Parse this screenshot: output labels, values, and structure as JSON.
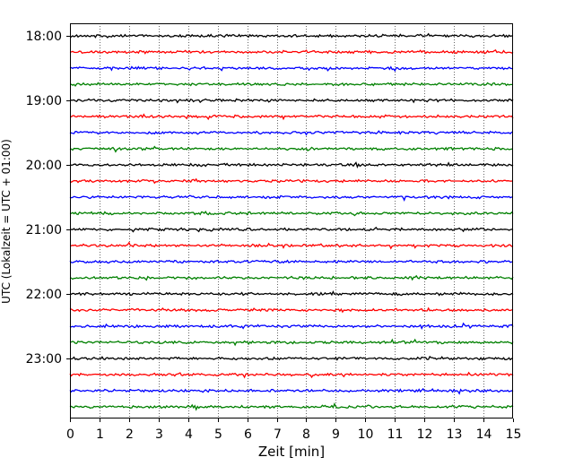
{
  "chart_data": {
    "type": "line",
    "title": "",
    "xlabel": "Zeit  [min]",
    "ylabel": "UTC (Lokalzeit = UTC + 01:00)",
    "xlim": [
      0,
      15
    ],
    "x_ticks": [
      0,
      1,
      2,
      3,
      4,
      5,
      6,
      7,
      8,
      9,
      10,
      11,
      12,
      13,
      14,
      15
    ],
    "y_tick_labels": [
      "18:00",
      "19:00",
      "20:00",
      "21:00",
      "22:00",
      "23:00"
    ],
    "grid": "vertical dotted lines at each minute",
    "legend": "none",
    "trace_interval_min": 15,
    "trace_colors": [
      "#000000",
      "#ff0000",
      "#0000ff",
      "#008000"
    ],
    "series": [
      {
        "start": "18:00",
        "color": "#000000",
        "amplitude": 0.3
      },
      {
        "start": "18:15",
        "color": "#ff0000",
        "amplitude": 0.3
      },
      {
        "start": "18:30",
        "color": "#0000ff",
        "amplitude": 0.3
      },
      {
        "start": "18:45",
        "color": "#008000",
        "amplitude": 0.3
      },
      {
        "start": "19:00",
        "color": "#000000",
        "amplitude": 0.3
      },
      {
        "start": "19:15",
        "color": "#ff0000",
        "amplitude": 0.3
      },
      {
        "start": "19:30",
        "color": "#0000ff",
        "amplitude": 0.3
      },
      {
        "start": "19:45",
        "color": "#008000",
        "amplitude": 0.3
      },
      {
        "start": "20:00",
        "color": "#000000",
        "amplitude": 0.3
      },
      {
        "start": "20:15",
        "color": "#ff0000",
        "amplitude": 0.3
      },
      {
        "start": "20:30",
        "color": "#0000ff",
        "amplitude": 0.3
      },
      {
        "start": "20:45",
        "color": "#008000",
        "amplitude": 0.3
      },
      {
        "start": "21:00",
        "color": "#000000",
        "amplitude": 0.3
      },
      {
        "start": "21:15",
        "color": "#ff0000",
        "amplitude": 0.3
      },
      {
        "start": "21:30",
        "color": "#0000ff",
        "amplitude": 0.3
      },
      {
        "start": "21:45",
        "color": "#008000",
        "amplitude": 0.3
      },
      {
        "start": "22:00",
        "color": "#000000",
        "amplitude": 0.3
      },
      {
        "start": "22:15",
        "color": "#ff0000",
        "amplitude": 0.3
      },
      {
        "start": "22:30",
        "color": "#0000ff",
        "amplitude": 0.3
      },
      {
        "start": "22:45",
        "color": "#008000",
        "amplitude": 0.3
      },
      {
        "start": "23:00",
        "color": "#000000",
        "amplitude": 0.3
      },
      {
        "start": "23:15",
        "color": "#ff0000",
        "amplitude": 0.3
      },
      {
        "start": "23:30",
        "color": "#0000ff",
        "amplitude": 0.3
      },
      {
        "start": "23:45",
        "color": "#008000",
        "amplitude": 0.3
      }
    ]
  }
}
